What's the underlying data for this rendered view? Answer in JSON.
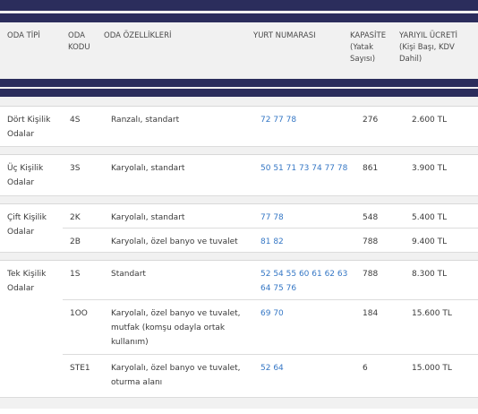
{
  "headers": {
    "type": "ODA TİPİ",
    "code": "ODA KODU",
    "features": "ODA ÖZELLİKLERİ",
    "dorms": "YURT NUMARASI",
    "capacity": "KAPASİTE (Yatak Sayısı)",
    "fee": "YARIYIL ÜCRETİ (Kişi Başı, KDV Dahil)"
  },
  "groups": [
    {
      "label": "Dört Kişilik Odalar",
      "rows": [
        {
          "code": "4S",
          "features": "Ranzalı, standart",
          "dorms": "72 77 78",
          "capacity": "276",
          "fee": "2.600 TL"
        }
      ]
    },
    {
      "label": "Üç Kişilik Odalar",
      "rows": [
        {
          "code": "3S",
          "features": "Karyolalı, standart",
          "dorms": "50 51 71 73 74 77 78",
          "capacity": "861",
          "fee": "3.900 TL"
        }
      ]
    },
    {
      "label": "Çift Kişilik Odalar",
      "rows": [
        {
          "code": "2K",
          "features": "Karyolalı, standart",
          "dorms": "77 78",
          "capacity": "548",
          "fee": "5.400 TL"
        },
        {
          "code": "2B",
          "features": "Karyolalı, özel banyo ve tuvalet",
          "dorms": "81 82",
          "capacity": "788",
          "fee": "9.400 TL"
        }
      ]
    },
    {
      "label": "Tek Kişilik Odalar",
      "rows": [
        {
          "code": "1S",
          "features": "Standart",
          "dorms": "52 54 55 60 61 62 63 64 75 76",
          "capacity": "788",
          "fee": "8.300 TL"
        },
        {
          "code": "1OO",
          "features": "Karyolalı, özel banyo ve tuvalet, mutfak (komşu odayla ortak kullanım)",
          "dorms": "69 70",
          "capacity": "184",
          "fee": "15.600 TL"
        },
        {
          "code": "STE1",
          "features": "Karyolalı, özel banyo ve tuvalet, oturma alanı",
          "dorms": "52 64",
          "capacity": "6",
          "fee": "15.000 TL"
        }
      ]
    }
  ]
}
